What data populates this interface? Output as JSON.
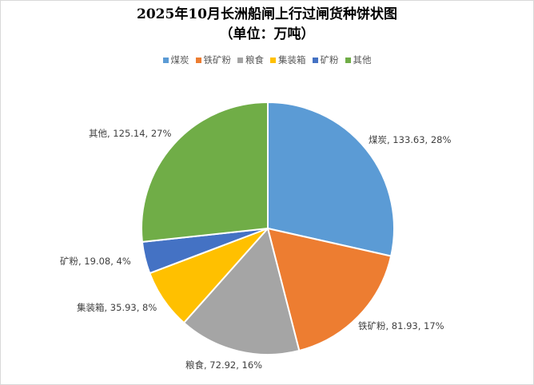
{
  "chart_data": {
    "type": "pie",
    "title": "2025年10月长洲船闸上行过闸货种饼状图",
    "subtitle": "（单位：万吨）",
    "legend_position": "top",
    "slices": [
      {
        "name": "煤炭",
        "value": 133.63,
        "percent": "28%",
        "label": "煤炭, 133.63, 28%",
        "color": "#5b9bd5"
      },
      {
        "name": "铁矿粉",
        "value": 81.93,
        "percent": "17%",
        "label": "铁矿粉, 81.93, 17%",
        "color": "#ed7d31"
      },
      {
        "name": "粮食",
        "value": 72.92,
        "percent": "16%",
        "label": "粮食, 72.92, 16%",
        "color": "#a5a5a5"
      },
      {
        "name": "集装箱",
        "value": 35.93,
        "percent": "8%",
        "label": "集装箱, 35.93, 8%",
        "color": "#ffc000"
      },
      {
        "name": "矿粉",
        "value": 19.08,
        "percent": "4%",
        "label": "矿粉, 19.08, 4%",
        "color": "#4472c4"
      },
      {
        "name": "其他",
        "value": 125.14,
        "percent": "27%",
        "label": "其他, 125.14, 27%",
        "color": "#70ad47"
      }
    ]
  }
}
